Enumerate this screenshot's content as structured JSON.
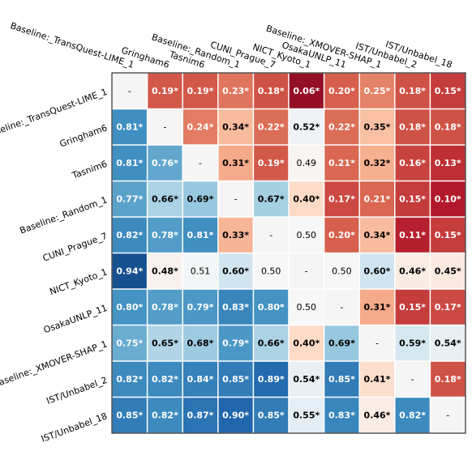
{
  "chart_data": {
    "type": "heatmap",
    "labels": [
      "Baseline:_TransQuest-LIME_1",
      "Gringham6",
      "Tasnim6",
      "Baseline:_Random_1",
      "CUNI_Prague_7",
      "NICT_Kyoto_1",
      "OsakaUNLP_11",
      "Baseline:_XMOVER-SHAP_1",
      "IST/Unbabel_2",
      "IST/Unbabel_18"
    ],
    "cells": [
      [
        null,
        0.19,
        0.19,
        0.23,
        0.18,
        0.06,
        0.2,
        0.25,
        0.18,
        0.15
      ],
      [
        0.81,
        null,
        0.24,
        0.34,
        0.22,
        0.52,
        0.22,
        0.35,
        0.18,
        0.18
      ],
      [
        0.81,
        0.76,
        null,
        0.31,
        0.19,
        0.49,
        0.21,
        0.32,
        0.16,
        0.13
      ],
      [
        0.77,
        0.66,
        0.69,
        null,
        0.67,
        0.4,
        0.17,
        0.21,
        0.15,
        0.1
      ],
      [
        0.82,
        0.78,
        0.81,
        0.33,
        null,
        0.5,
        0.2,
        0.34,
        0.11,
        0.15
      ],
      [
        0.94,
        0.48,
        0.51,
        0.6,
        0.5,
        null,
        0.5,
        0.6,
        0.46,
        0.45
      ],
      [
        0.8,
        0.78,
        0.79,
        0.83,
        0.8,
        0.5,
        null,
        0.31,
        0.15,
        0.17
      ],
      [
        0.75,
        0.65,
        0.68,
        0.79,
        0.66,
        0.4,
        0.69,
        null,
        0.59,
        0.54
      ],
      [
        0.82,
        0.82,
        0.84,
        0.85,
        0.89,
        0.54,
        0.85,
        0.41,
        null,
        0.18
      ],
      [
        0.85,
        0.82,
        0.87,
        0.9,
        0.85,
        0.55,
        0.83,
        0.46,
        0.82,
        null
      ]
    ],
    "display": [
      [
        "-",
        "0.19*",
        "0.19*",
        "0.23*",
        "0.18*",
        "0.06*",
        "0.20*",
        "0.25*",
        "0.18*",
        "0.15*"
      ],
      [
        "0.81*",
        "-",
        "0.24*",
        "0.34*",
        "0.22*",
        "0.52*",
        "0.22*",
        "0.35*",
        "0.18*",
        "0.18*"
      ],
      [
        "0.81*",
        "0.76*",
        "-",
        "0.31*",
        "0.19*",
        "0.49",
        "0.21*",
        "0.32*",
        "0.16*",
        "0.13*"
      ],
      [
        "0.77*",
        "0.66*",
        "0.69*",
        "-",
        "0.67*",
        "0.40*",
        "0.17*",
        "0.21*",
        "0.15*",
        "0.10*"
      ],
      [
        "0.82*",
        "0.78*",
        "0.81*",
        "0.33*",
        "-",
        "0.50",
        "0.20*",
        "0.34*",
        "0.11*",
        "0.15*"
      ],
      [
        "0.94*",
        "0.48*",
        "0.51",
        "0.60*",
        "0.50",
        "-",
        "0.50",
        "0.60*",
        "0.46*",
        "0.45*"
      ],
      [
        "0.80*",
        "0.78*",
        "0.79*",
        "0.83*",
        "0.80*",
        "0.50",
        "-",
        "0.31*",
        "0.15*",
        "0.17*"
      ],
      [
        "0.75*",
        "0.65*",
        "0.68*",
        "0.79*",
        "0.66*",
        "0.40*",
        "0.69*",
        "-",
        "0.59*",
        "0.54*"
      ],
      [
        "0.82*",
        "0.82*",
        "0.84*",
        "0.85*",
        "0.89*",
        "0.54*",
        "0.85*",
        "0.41*",
        "-",
        "0.18*"
      ],
      [
        "0.85*",
        "0.82*",
        "0.87*",
        "0.90*",
        "0.85*",
        "0.55*",
        "0.83*",
        "0.46*",
        "0.82*",
        "-"
      ]
    ],
    "colormap": "RdBu",
    "value_range": [
      0,
      1
    ],
    "diagonal_color": "#f5f5f5",
    "grid": false
  }
}
